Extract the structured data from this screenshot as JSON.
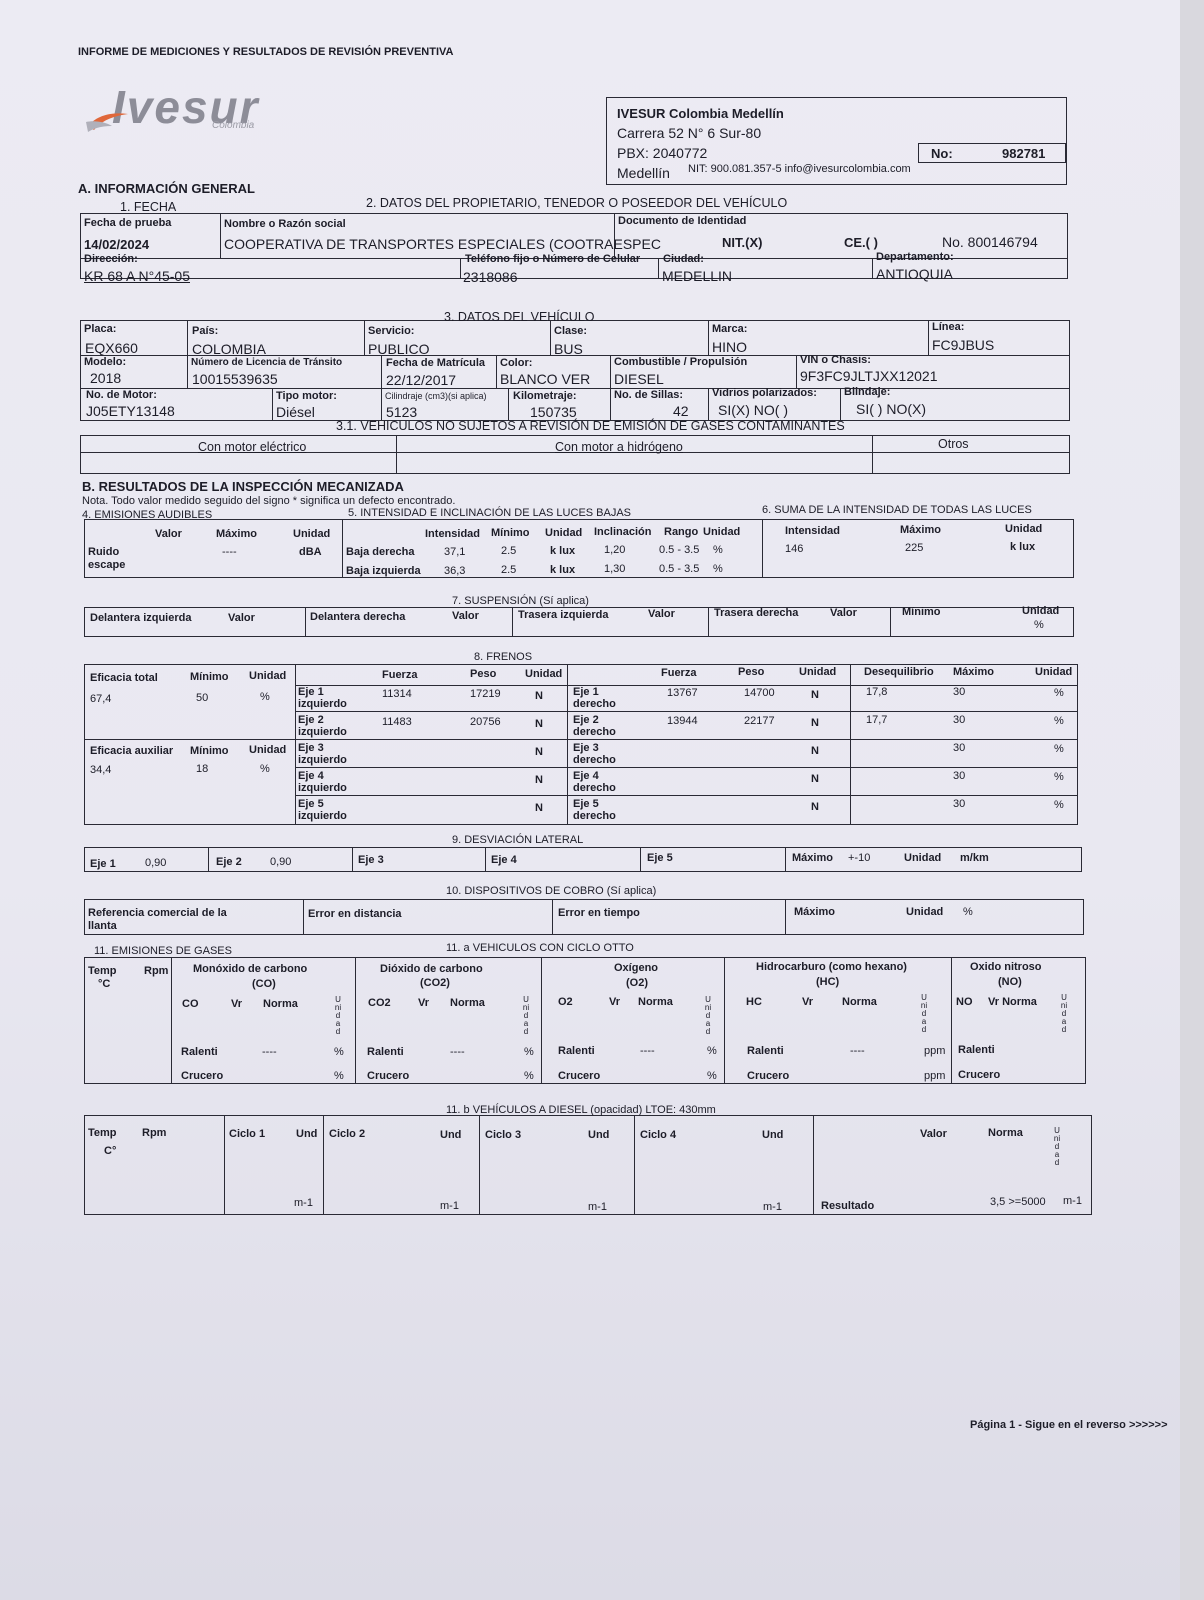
{
  "header": {
    "title": "INFORME DE MEDICIONES Y RESULTADOS DE REVISIÓN PREVENTIVA",
    "logo": "Ivesur",
    "logo_sub": "Colombia"
  },
  "company": {
    "name": "IVESUR Colombia Medellín",
    "address": "Carrera 52 N° 6 Sur-80",
    "pbx": "PBX: 2040772",
    "city": "Medellín",
    "nit": "NIT: 900.081.357-5 info@ivesurcolombia.com",
    "no_label": "No:",
    "no_value": "982781"
  },
  "sec_a": {
    "title": "A. INFORMACIÓN GENERAL",
    "fecha_title": "1. FECHA",
    "owner_title": "2. DATOS DEL PROPIETARIO, TENEDOR O POSEEDOR DEL VEHÍCULO",
    "fecha_label": "Fecha de prueba",
    "fecha": "14/02/2024",
    "nombre_label": "Nombre o Razón social",
    "nombre": "COOPERATIVA DE TRANSPORTES ESPECIALES (COOTRAESPEC",
    "doc_label": "Documento de Identidad",
    "nit": "NIT.(X)",
    "ce": "CE.(  )",
    "doc_no": "No. 800146794",
    "dir_label": "Dirección:",
    "dir": "KR 68 A N°45-05",
    "tel_label": "Teléfono fijo o Número de Celular",
    "tel": "2318086",
    "ciudad_label": "Ciudad:",
    "ciudad": "MEDELLIN",
    "depto_label": "Departamento:",
    "depto": "ANTIOQUIA"
  },
  "vehiculo": {
    "title": "3. DATOS DEL VEHÍCULO",
    "placa_label": "Placa:",
    "placa": "EQX660",
    "pais_label": "País:",
    "pais": "COLOMBIA",
    "servicio_label": "Servicio:",
    "servicio": "PUBLICO",
    "clase_label": "Clase:",
    "clase": "BUS",
    "marca_label": "Marca:",
    "marca": "HINO",
    "linea_label": "Línea:",
    "linea": "FC9JBUS",
    "modelo_label": "Modelo:",
    "modelo": "2018",
    "licencia_label": "Número de Licencia de Tránsito",
    "licencia": "10015539635",
    "matricula_label": "Fecha de Matrícula",
    "matricula": "22/12/2017",
    "color_label": "Color:",
    "color": "BLANCO VER",
    "combustible_label": "Combustible / Propulsión",
    "combustible": "DIESEL",
    "vin_label": "VIN o Chasis:",
    "vin": "9F3FC9JLTJXX12021",
    "motor_label": "No. de Motor:",
    "motor": "J05ETY13148",
    "tipo_label": "Tipo motor:",
    "tipo": "Diésel",
    "cil_label": "Cilindraje (cm3)(si aplica)",
    "cil": "5123",
    "km_label": "Kilometraje:",
    "km": "150735",
    "sillas_label": "No. de Sillas:",
    "sillas": "42",
    "vidrios_label": "Vidrios polarizados:",
    "vidrios": "SI(X) NO(  )",
    "blindaje_label": "Blindaje:",
    "blindaje": "SI(  )  NO(X)",
    "no_sujetos_title": "3.1. VEHICULOS NO SUJETOS A REVISIÓN DE EMISIÓN DE GASES CONTAMINANTES",
    "electrico": "Con motor eléctrico",
    "hidrogeno": "Con motor a hidrógeno",
    "otros": "Otros"
  },
  "sec_b": {
    "title": "B. RESULTADOS DE LA INSPECCIÓN MECANIZADA",
    "nota": "Nota. Todo valor medido seguido del signo * significa un defecto encontrado."
  },
  "audibles": {
    "title": "4. EMISIONES AUDIBLES",
    "valor": "Valor",
    "maximo": "Máximo",
    "unidad": "Unidad",
    "ruido": "Ruido",
    "escape": "escape",
    "max_val": "----",
    "unit_val": "dBA"
  },
  "luces": {
    "title": "5. INTENSIDAD E INCLINACIÓN DE LAS LUCES BAJAS",
    "h_int": "Intensidad",
    "h_min": "Mínimo",
    "h_uni": "Unidad",
    "h_inc": "Inclinación",
    "h_rango": "Rango",
    "h_uni2": "Unidad",
    "rows": [
      {
        "name": "Baja derecha",
        "int": "37,1",
        "min": "2.5",
        "uni": "k lux",
        "inc": "1,20",
        "rango": "0.5 - 3.5",
        "uni2": "%"
      },
      {
        "name": "Baja izquierda",
        "int": "36,3",
        "min": "2.5",
        "uni": "k lux",
        "inc": "1,30",
        "rango": "0.5 - 3.5",
        "uni2": "%"
      }
    ]
  },
  "suma": {
    "title": "6. SUMA DE LA INTENSIDAD DE TODAS LAS LUCES",
    "h_int": "Intensidad",
    "h_max": "Máximo",
    "h_uni": "Unidad",
    "int": "146",
    "max": "225",
    "uni": "k lux"
  },
  "suspension": {
    "title": "7. SUSPENSIÓN (Sí aplica)",
    "di": "Delantera izquierda",
    "dd": "Delantera derecha",
    "ti": "Trasera izquierda",
    "td": "Trasera derecha",
    "valor": "Valor",
    "minimo": "Mínimo",
    "unidad": "Unidad",
    "pct": "%"
  },
  "frenos": {
    "title": "8. FRENOS",
    "ef_total": "Eficacia total",
    "minimo": "Mínimo",
    "unidad": "Unidad",
    "ef_total_val": "67,4",
    "ef_total_min": "50",
    "pct": "%",
    "ef_aux": "Eficacia auxiliar",
    "ef_aux_val": "34,4",
    "ef_aux_min": "18",
    "fuerza": "Fuerza",
    "peso": "Peso",
    "deseq": "Desequilibrio",
    "maximo": "Máximo",
    "rows": [
      {
        "izq": "Eje 1",
        "izq2": "izquierdo",
        "fi": "11314",
        "pi": "17219",
        "ui": "N",
        "der": "Eje 1",
        "der2": "derecho",
        "fd": "13767",
        "pd": "14700",
        "ud": "N",
        "des": "17,8",
        "max": "30",
        "u": "%"
      },
      {
        "izq": "Eje 2",
        "izq2": "izquierdo",
        "fi": "11483",
        "pi": "20756",
        "ui": "N",
        "der": "Eje 2",
        "der2": "derecho",
        "fd": "13944",
        "pd": "22177",
        "ud": "N",
        "des": "17,7",
        "max": "30",
        "u": "%"
      },
      {
        "izq": "Eje 3",
        "izq2": "izquierdo",
        "fi": "",
        "pi": "",
        "ui": "N",
        "der": "Eje 3",
        "der2": "derecho",
        "fd": "",
        "pd": "",
        "ud": "N",
        "des": "",
        "max": "30",
        "u": "%"
      },
      {
        "izq": "Eje 4",
        "izq2": "izquierdo",
        "fi": "",
        "pi": "",
        "ui": "N",
        "der": "Eje 4",
        "der2": "derecho",
        "fd": "",
        "pd": "",
        "ud": "N",
        "des": "",
        "max": "30",
        "u": "%"
      },
      {
        "izq": "Eje 5",
        "izq2": "izquierdo",
        "fi": "",
        "pi": "",
        "ui": "N",
        "der": "Eje 5",
        "der2": "derecho",
        "fd": "",
        "pd": "",
        "ud": "N",
        "des": "",
        "max": "30",
        "u": "%"
      }
    ]
  },
  "desviacion": {
    "title": "9. DESVIACIÓN LATERAL",
    "eje1": "Eje 1",
    "eje1_val": "0,90",
    "eje2": "Eje 2",
    "eje2_val": "0,90",
    "eje3": "Eje 3",
    "eje4": "Eje 4",
    "eje5": "Eje 5",
    "maximo": "Máximo",
    "max_val": "+-10",
    "unidad": "Unidad",
    "unit_val": "m/km"
  },
  "cobro": {
    "title": "10. DISPOSITIVOS DE COBRO (Sí aplica)",
    "ref": "Referencia comercial de la",
    "ref2": "llanta",
    "err_dist": "Error en distancia",
    "err_tiempo": "Error en tiempo",
    "maximo": "Máximo",
    "unidad": "Unidad",
    "pct": "%"
  },
  "gases": {
    "title": "11. EMISIONES DE GASES",
    "otto_title": "11. a VEHICULOS CON CICLO OTTO",
    "temp": "Temp",
    "temp_u": "°C",
    "rpm": "Rpm",
    "unidad_v": "Unidad",
    "co": "Monóxido de carbono",
    "co_s": "(CO)",
    "co2": "Dióxido de carbono",
    "co2_s": "(CO2)",
    "o2": "Oxígeno",
    "o2_s": "(O2)",
    "hc": "Hidrocarburo (como hexano)",
    "hc_s": "(HC)",
    "no": "Oxido nitroso",
    "no_s": "(NO)",
    "c_co": "CO",
    "c_co2": "CO2",
    "c_o2": "O2",
    "c_hc": "HC",
    "c_no": "NO",
    "vr": "Vr",
    "norma": "Norma",
    "vr_norma": "Vr Norma",
    "ralenti": "Ralenti",
    "crucero": "Crucero",
    "dash": "----",
    "pct": "%",
    "ppm": "ppm"
  },
  "diesel": {
    "title": "11. b VEHÍCULOS A DIESEL (opacidad) LTOE: 430mm",
    "temp": "Temp",
    "temp_u": "C°",
    "rpm": "Rpm",
    "c1": "Ciclo 1",
    "c2": "Ciclo 2",
    "c3": "Ciclo 3",
    "c4": "Ciclo 4",
    "und": "Und",
    "m1": "m-1",
    "valor": "Valor",
    "norma": "Norma",
    "unidad_v": "Unidad",
    "resultado": "Resultado",
    "norma_val": "3,5 >=5000"
  },
  "footer": {
    "page": "Página 1 - Sigue en el reverso >>>>>>"
  }
}
